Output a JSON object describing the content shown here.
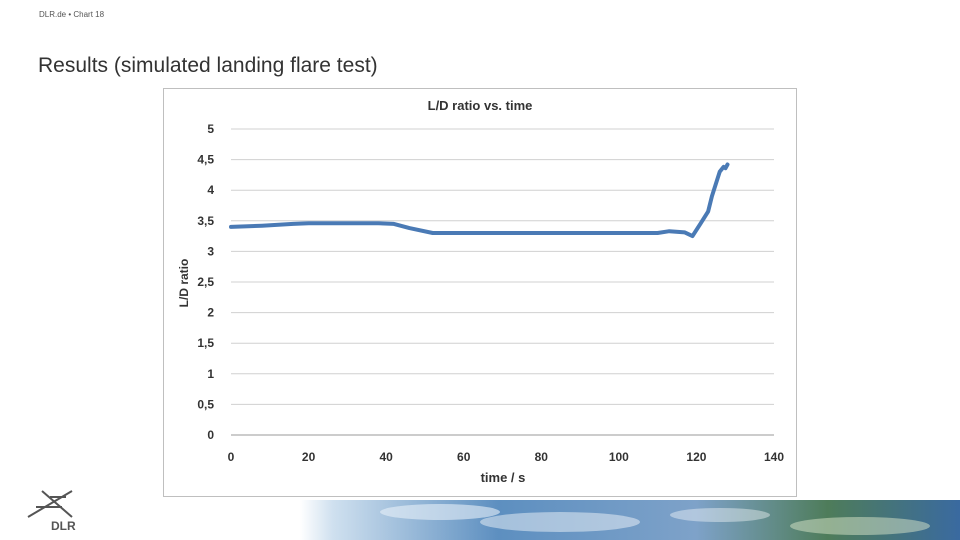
{
  "header": {
    "crumb": "DLR.de  •  Chart 18"
  },
  "page": {
    "title": "Results (simulated landing flare test)"
  },
  "logo": {
    "text": "DLR"
  },
  "colors": {
    "series": "#4a7ab5",
    "grid": "#d0d0d0",
    "text": "#333333"
  },
  "chart_data": {
    "type": "line",
    "title": "L/D ratio vs. time",
    "xlabel": "time / s",
    "ylabel": "L/D ratio",
    "xlim": [
      0,
      140
    ],
    "ylim": [
      0,
      5
    ],
    "xticks": [
      0,
      20,
      40,
      60,
      80,
      100,
      120,
      140
    ],
    "yticks": [
      0,
      0.5,
      1,
      1.5,
      2,
      2.5,
      3,
      3.5,
      4,
      4.5,
      5
    ],
    "ytick_labels": [
      "0",
      "0,5",
      "1",
      "1,5",
      "2",
      "2,5",
      "3",
      "3,5",
      "4",
      "4,5",
      "5"
    ],
    "grid": "horizontal",
    "legend": "none",
    "series": [
      {
        "x": [
          0,
          8,
          16,
          20,
          30,
          38,
          42,
          46,
          52,
          60,
          70,
          80,
          90,
          100,
          110,
          113,
          117,
          119,
          121,
          123,
          124,
          126,
          127,
          127.5,
          128
        ],
        "y": [
          3.4,
          3.42,
          3.45,
          3.46,
          3.46,
          3.46,
          3.45,
          3.38,
          3.3,
          3.3,
          3.3,
          3.3,
          3.3,
          3.3,
          3.3,
          3.33,
          3.31,
          3.25,
          3.45,
          3.65,
          3.9,
          4.3,
          4.38,
          4.36,
          4.42
        ]
      }
    ]
  }
}
